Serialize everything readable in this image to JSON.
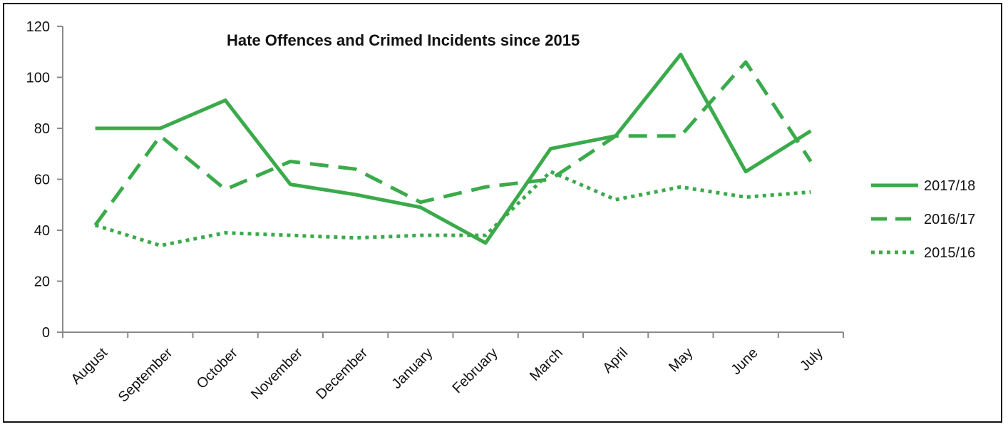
{
  "chart_data": {
    "type": "line",
    "title": "Hate Offences and Crimed Incidents since 2015",
    "xlabel": "",
    "ylabel": "",
    "ylim": [
      0,
      120
    ],
    "yticks": [
      0,
      20,
      40,
      60,
      80,
      100,
      120
    ],
    "grid": false,
    "legend_position": "right",
    "categories": [
      "August",
      "September",
      "October",
      "November",
      "December",
      "January",
      "February",
      "March",
      "April",
      "May",
      "June",
      "July"
    ],
    "series": [
      {
        "name": "2017/18",
        "style": "solid",
        "color": "#3aaa4a",
        "values": [
          80,
          80,
          91,
          58,
          54,
          49,
          35,
          72,
          77,
          109,
          63,
          79
        ]
      },
      {
        "name": "2016/17",
        "style": "dashed",
        "color": "#3aaa4a",
        "values": [
          42,
          77,
          56,
          67,
          64,
          51,
          57,
          60,
          77,
          77,
          106,
          67
        ]
      },
      {
        "name": "2015/16",
        "style": "dotted",
        "color": "#3aaa4a",
        "values": [
          42,
          34,
          39,
          38,
          37,
          38,
          38,
          63,
          52,
          57,
          53,
          55
        ]
      }
    ]
  }
}
